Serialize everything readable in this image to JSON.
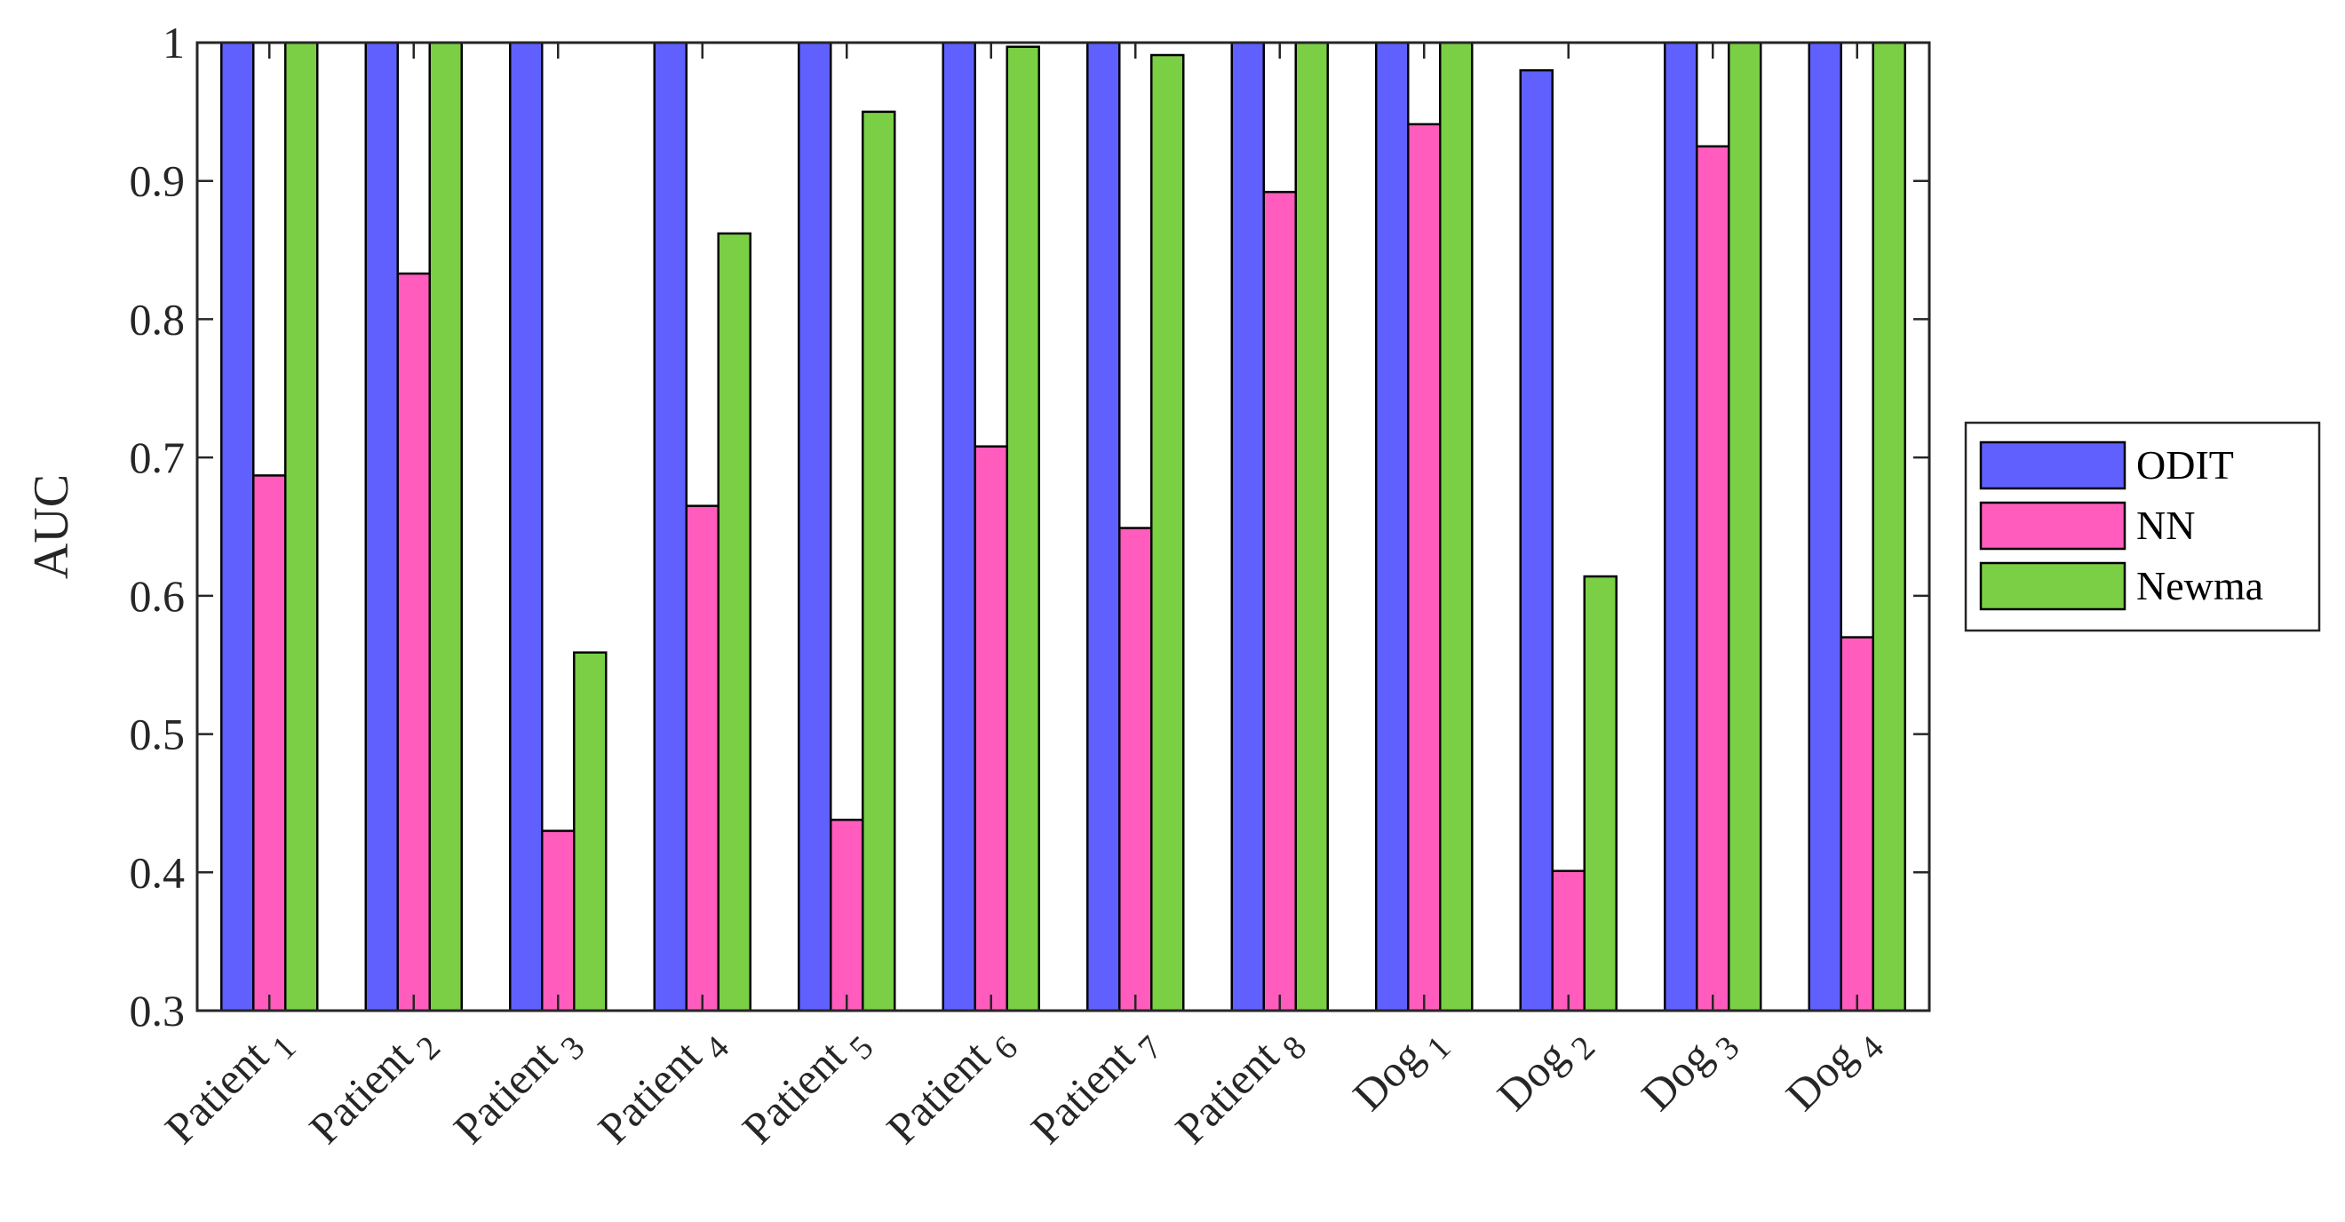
{
  "chart_data": {
    "type": "bar",
    "ylabel": "AUC",
    "xlabel": "",
    "ylim": [
      0.3,
      1
    ],
    "yticks": [
      "0.3",
      "0.4",
      "0.5",
      "0.6",
      "0.7",
      "0.8",
      "0.9",
      "1"
    ],
    "categories": [
      {
        "base": "Patient",
        "sub": "1"
      },
      {
        "base": "Patient",
        "sub": "2"
      },
      {
        "base": "Patient",
        "sub": "3"
      },
      {
        "base": "Patient",
        "sub": "4"
      },
      {
        "base": "Patient",
        "sub": "5"
      },
      {
        "base": "Patient",
        "sub": "6"
      },
      {
        "base": "Patient",
        "sub": "7"
      },
      {
        "base": "Patient",
        "sub": "8"
      },
      {
        "base": "Dog",
        "sub": "1"
      },
      {
        "base": "Dog",
        "sub": "2"
      },
      {
        "base": "Dog",
        "sub": "3"
      },
      {
        "base": "Dog",
        "sub": "4"
      }
    ],
    "series": [
      {
        "name": "ODIT",
        "color": "#6060ff",
        "values": [
          1.0,
          1.0,
          1.0,
          1.0,
          1.0,
          1.0,
          1.0,
          1.0,
          1.0,
          0.98,
          1.0,
          1.0
        ]
      },
      {
        "name": "NN",
        "color": "#ff5cbd",
        "values": [
          0.687,
          0.833,
          0.43,
          0.665,
          0.438,
          0.708,
          0.649,
          0.892,
          0.941,
          0.401,
          0.925,
          0.57
        ]
      },
      {
        "name": "Newma",
        "color": "#7acf45",
        "values": [
          1.0,
          1.0,
          0.559,
          0.862,
          0.95,
          0.997,
          0.991,
          1.0,
          1.0,
          0.614,
          1.0,
          1.0
        ]
      }
    ],
    "legend_position": "right",
    "grid": false
  }
}
